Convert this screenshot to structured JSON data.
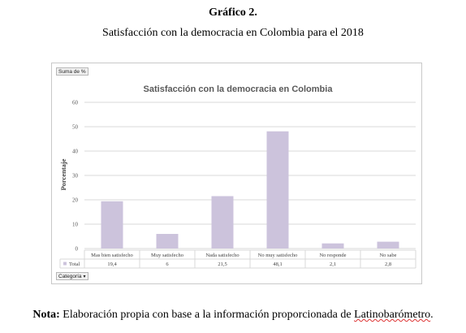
{
  "figure": {
    "number": "Gráfico 2.",
    "caption": "Satisfacción con la democracia en Colombia para el 2018"
  },
  "pivot": {
    "values_field": "Suma de %",
    "category_field": "Categoría",
    "filter_icon": "▾",
    "total_label": "Total"
  },
  "note": {
    "lead": "Nota:",
    "text": "Elaboración propia con base a la información proporcionada de",
    "source": "Latinobarómetro",
    "end": "."
  },
  "chart_data": {
    "type": "bar",
    "title": "Satisfacción con la democracia en Colombia",
    "ylabel": "Porcentaje",
    "xlabel": "",
    "ylim": [
      0,
      60
    ],
    "yticks": [
      0,
      10,
      20,
      30,
      40,
      50,
      60
    ],
    "grid": true,
    "categories": [
      "Mas bien satisfecho",
      "Muy satisfecho",
      "Nada satisfecho",
      "No muy satisfecho",
      "No responde",
      "No sabe"
    ],
    "values": [
      19.4,
      6,
      21.5,
      48.1,
      2.1,
      2.8
    ],
    "value_labels": [
      "19,4",
      "6",
      "21,5",
      "48,1",
      "2,1",
      "2,8"
    ],
    "bar_color": "#ccc3dc",
    "grid_color": "#d9d9d9"
  }
}
